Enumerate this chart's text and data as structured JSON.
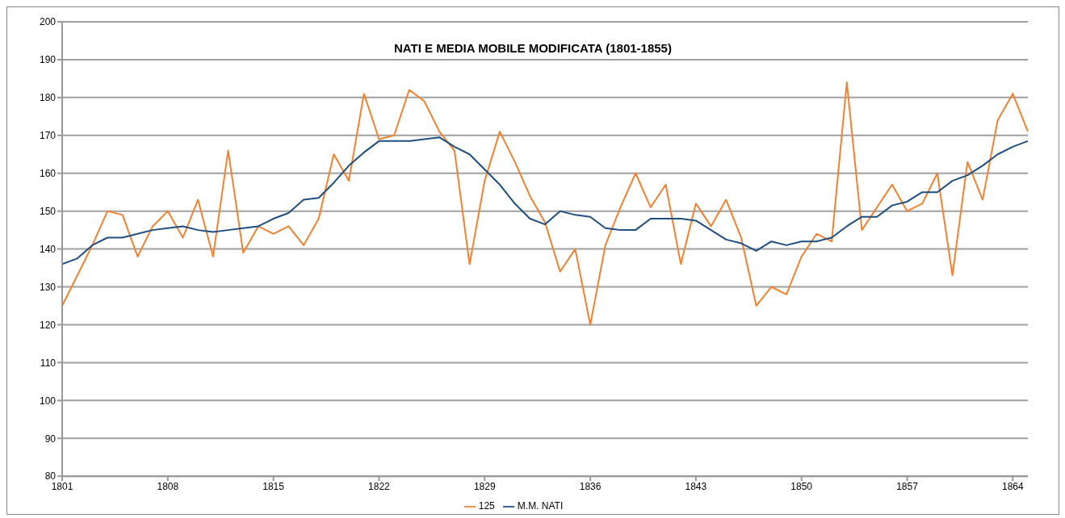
{
  "chart_data": {
    "type": "line",
    "title": "NATI E MEDIA MOBILE MODIFICATA (1801-1855)",
    "categories": [
      "1801",
      null,
      null,
      null,
      null,
      null,
      null,
      "1808",
      null,
      null,
      null,
      null,
      null,
      null,
      "1815",
      null,
      null,
      null,
      null,
      null,
      null,
      "1822",
      null,
      null,
      null,
      null,
      null,
      null,
      "1829",
      null,
      null,
      null,
      null,
      null,
      null,
      "1836",
      null,
      null,
      null,
      null,
      null,
      null,
      "1843",
      null,
      null,
      null,
      null,
      null,
      null,
      "1850",
      null,
      null,
      null,
      null,
      null,
      null,
      "1857",
      null,
      null,
      null,
      null,
      null,
      null,
      "1864",
      null
    ],
    "series": [
      {
        "name": "125",
        "color": "#f28230",
        "values": [
          125,
          133,
          141,
          150,
          149,
          138,
          146,
          150,
          143,
          153,
          138,
          166,
          139,
          146,
          144,
          146,
          141,
          148,
          165,
          158,
          181,
          169,
          170,
          182,
          179,
          171,
          166,
          136,
          158,
          171,
          163,
          154,
          147,
          134,
          140,
          120,
          141,
          151,
          160,
          151,
          157,
          136,
          152,
          146,
          153,
          143,
          125,
          130,
          128,
          138,
          144,
          142,
          184,
          145,
          151,
          157,
          150,
          152,
          160,
          133,
          163,
          153,
          174,
          181,
          171
        ]
      },
      {
        "name": "M.M. NATI",
        "color": "#1f4e80",
        "values": [
          136,
          137.5,
          141,
          143,
          143,
          144,
          145,
          145.5,
          146,
          145,
          144.5,
          145,
          145.5,
          146,
          148,
          149.5,
          153,
          153.5,
          157.5,
          162,
          165.5,
          168.5,
          168.5,
          168.5,
          169,
          169.5,
          167,
          165,
          161,
          157,
          152,
          148,
          146.5,
          150,
          149,
          148.5,
          145.5,
          145,
          145,
          148,
          148,
          148,
          147.5,
          145,
          142.5,
          141.5,
          139.5,
          142,
          141,
          142,
          142,
          143,
          146,
          148.5,
          148.5,
          151.5,
          152.5,
          155,
          155,
          158,
          159.5,
          162,
          165,
          167,
          168.5
        ]
      }
    ],
    "ylim": [
      80,
      200
    ],
    "yticks": [
      80,
      90,
      100,
      110,
      120,
      130,
      140,
      150,
      160,
      170,
      180,
      190,
      200
    ],
    "grid": "y",
    "legend": "bottom",
    "marker": "none",
    "line_style": "solid"
  }
}
